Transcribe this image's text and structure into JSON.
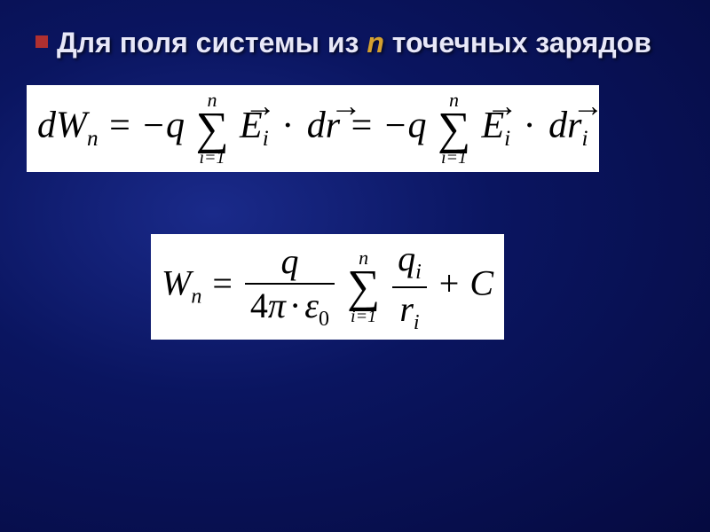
{
  "heading": {
    "part1": "Для поля системы из ",
    "n": "n",
    "part2": " точечных зарядов"
  },
  "formula1": {
    "dW": "dW",
    "n_sub": "n",
    "eq": "=",
    "minus": "−",
    "q": "q",
    "sum_top": "n",
    "sum_sigma": "∑",
    "sum_bot": "i=1",
    "E": "E",
    "i_sub": "i",
    "dot": "·",
    "d": "d",
    "r": "r",
    "arrow": "→"
  },
  "formula2": {
    "W": "W",
    "n_sub": "n",
    "eq": "=",
    "q": "q",
    "four": "4",
    "pi": "π",
    "dot": "·",
    "eps": "ε",
    "zero": "0",
    "sum_top": "n",
    "sum_sigma": "∑",
    "sum_bot": "i=1",
    "qi": "q",
    "i_sub": "i",
    "r": "r",
    "plus": "+",
    "C": "C"
  },
  "style": {
    "background_gradient": [
      "#1a2a8a",
      "#0a1560",
      "#050a40"
    ],
    "heading_color": "#e8e8f8",
    "n_color": "#d4a030",
    "bullet_color": "#b03030",
    "formula_bg": "#ffffff",
    "formula_fg": "#000000",
    "heading_fontsize": 32,
    "formula1_fontsize": 42,
    "formula2_fontsize": 40,
    "font_heading": "Arial",
    "font_formula": "Times New Roman"
  }
}
